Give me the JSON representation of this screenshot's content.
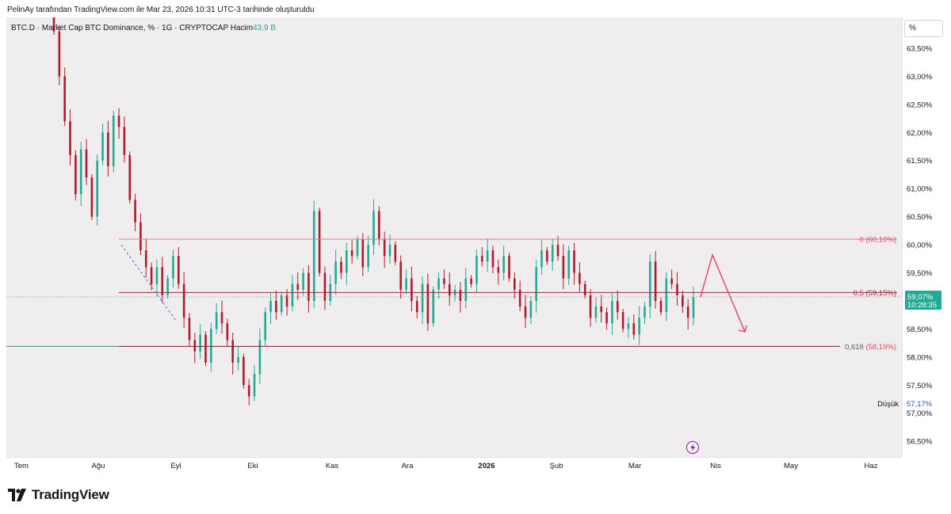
{
  "attribution": "PelinAy tarafından TradingView.com ile Mar 23, 2026 10:31 UTC-3 tarihinde oluşturuldu",
  "symbol_line": {
    "text": "BTC.D · Market Cap BTC Dominance, % · 1G · CRYPTOCAP  Hacim",
    "volume": "43,9 B"
  },
  "axis_button": "%",
  "brand": "TradingView",
  "colors": {
    "up": "#22ab94",
    "down": "#b2192c",
    "fib_line": "#e07a86",
    "mid_line": "#9c2a3a",
    "low_line": "#7a1f2c",
    "arrow": "#e8476a",
    "price_tag": "#22ab94",
    "low_label": "#1e53e5",
    "fib_label": "#e0475f"
  },
  "icons": {
    "replay": "lightning-icon"
  },
  "chart_data": {
    "type": "candlestick",
    "title": "BTC.D · Market Cap BTC Dominance",
    "ylabel": "%",
    "ylim": [
      56.22,
      64.05
    ],
    "y_ticks": [
      "63,50%",
      "63,00%",
      "62,50%",
      "62,00%",
      "61,50%",
      "61,00%",
      "60,50%",
      "60,00%",
      "59,50%",
      "59,00%",
      "58,50%",
      "58,00%",
      "57,50%",
      "57,00%",
      "56,50%"
    ],
    "x_ticks": [
      "Tem",
      "Ağu",
      "Eyl",
      "Eki",
      "Kas",
      "Ara",
      "2026",
      "Şub",
      "Mar",
      "Nis",
      "May",
      "Haz"
    ],
    "series": [
      {
        "name": "BTC.D",
        "closes": [
          63.8,
          63.0,
          62.2,
          61.6,
          60.9,
          61.7,
          61.2,
          60.5,
          61.5,
          62.0,
          61.4,
          62.3,
          62.1,
          61.6,
          60.8,
          60.4,
          59.9,
          59.6,
          59.3,
          59.6,
          59.1,
          59.4,
          59.8,
          59.3,
          58.7,
          58.3,
          58.1,
          58.4,
          57.9,
          58.5,
          58.8,
          58.6,
          58.3,
          57.9,
          58.0,
          57.5,
          57.3,
          57.7,
          58.3,
          58.8,
          59.0,
          58.8,
          59.1,
          58.9,
          59.3,
          59.2,
          59.5,
          59.0,
          60.6,
          59.5,
          59.0,
          59.3,
          59.7,
          59.5,
          59.9,
          59.8,
          60.1,
          59.6,
          60.0,
          60.6,
          60.1,
          59.8,
          60.0,
          59.7,
          59.2,
          59.4,
          59.0,
          58.8,
          59.3,
          58.6,
          59.2,
          59.4,
          59.3,
          59.1,
          59.2,
          59.0,
          59.4,
          59.3,
          59.8,
          59.7,
          59.9,
          59.6,
          59.5,
          59.8,
          59.4,
          59.2,
          58.9,
          58.7,
          59.0,
          59.6,
          59.9,
          59.7,
          60.0,
          59.8,
          59.4,
          59.9,
          59.5,
          59.3,
          59.1,
          58.7,
          58.9,
          58.8,
          58.6,
          59.0,
          58.8,
          58.5,
          58.6,
          58.4,
          58.7,
          58.9,
          59.7,
          59.0,
          58.8,
          59.4,
          59.3,
          59.1,
          58.9,
          58.7,
          59.07
        ]
      }
    ],
    "last_price": "59,07%",
    "countdown": "10:28:35",
    "low_label": "Düşük",
    "low_value": "57,17%",
    "levels": [
      {
        "label": "0 (60,10%)",
        "value": 60.1
      },
      {
        "label": "0,5 (59,15%)",
        "value": 59.15
      },
      {
        "label_prefix": "0,618",
        "label_value": "(58,19%)",
        "value": 58.19
      }
    ],
    "projection": {
      "points": [
        [
          59.07
        ],
        [
          59.82
        ],
        [
          58.45
        ]
      ],
      "description_hidden": true
    }
  }
}
